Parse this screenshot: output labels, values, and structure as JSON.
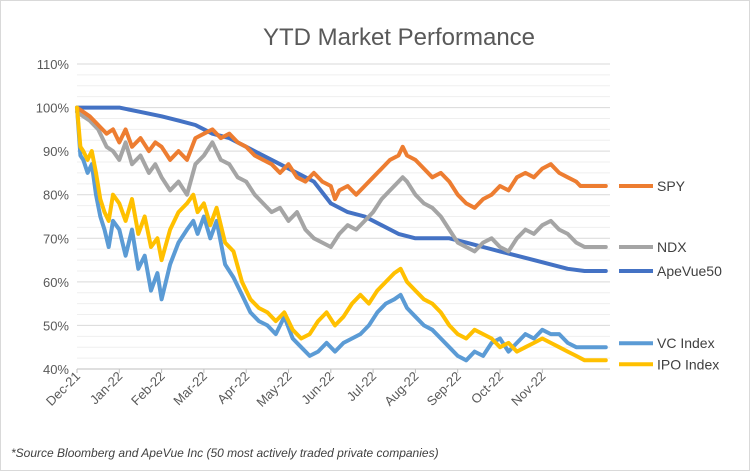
{
  "chart_data": {
    "type": "line",
    "title": "YTD Market Performance",
    "xlabel": "",
    "ylabel": "",
    "ylim": [
      40,
      110
    ],
    "y_ticks": [
      "40%",
      "50%",
      "60%",
      "70%",
      "80%",
      "90%",
      "100%",
      "110%"
    ],
    "y_tick_values": [
      40,
      50,
      60,
      70,
      80,
      90,
      100,
      110
    ],
    "x_ticks": [
      "Dec-21",
      "Jan-22",
      "Feb-22",
      "Mar-22",
      "Apr-22",
      "May-22",
      "Jun-22",
      "Jul-22",
      "Aug-22",
      "Sep-22",
      "Oct-22",
      "Nov-22"
    ],
    "x_tick_values": [
      0,
      1,
      2,
      3,
      4,
      5,
      6,
      7,
      8,
      9,
      10,
      11
    ],
    "x_range": [
      0,
      12.6
    ],
    "grid": true,
    "legend": "right, beside line ends",
    "series": [
      {
        "name": "SPY",
        "color": "#ED7D31",
        "points": [
          [
            0,
            100
          ],
          [
            0.15,
            99
          ],
          [
            0.3,
            98
          ],
          [
            0.5,
            96
          ],
          [
            0.7,
            94
          ],
          [
            0.85,
            95
          ],
          [
            1.0,
            92
          ],
          [
            1.15,
            95
          ],
          [
            1.3,
            91
          ],
          [
            1.5,
            93
          ],
          [
            1.7,
            90
          ],
          [
            1.85,
            92
          ],
          [
            2.0,
            91
          ],
          [
            2.2,
            88
          ],
          [
            2.4,
            90
          ],
          [
            2.6,
            88
          ],
          [
            2.8,
            93
          ],
          [
            3.0,
            94
          ],
          [
            3.2,
            95
          ],
          [
            3.4,
            93
          ],
          [
            3.6,
            94
          ],
          [
            3.8,
            92
          ],
          [
            4.0,
            91
          ],
          [
            4.2,
            89
          ],
          [
            4.4,
            88
          ],
          [
            4.6,
            87
          ],
          [
            4.8,
            85
          ],
          [
            5.0,
            87
          ],
          [
            5.2,
            84
          ],
          [
            5.4,
            83
          ],
          [
            5.6,
            85
          ],
          [
            5.8,
            83
          ],
          [
            6.0,
            82
          ],
          [
            6.1,
            79
          ],
          [
            6.2,
            81
          ],
          [
            6.4,
            82
          ],
          [
            6.6,
            80
          ],
          [
            6.8,
            82
          ],
          [
            7.0,
            84
          ],
          [
            7.2,
            86
          ],
          [
            7.4,
            88
          ],
          [
            7.6,
            89
          ],
          [
            7.7,
            91
          ],
          [
            7.8,
            89
          ],
          [
            8.0,
            88
          ],
          [
            8.2,
            86
          ],
          [
            8.4,
            84
          ],
          [
            8.6,
            85
          ],
          [
            8.8,
            83
          ],
          [
            9.0,
            80
          ],
          [
            9.2,
            78
          ],
          [
            9.4,
            77
          ],
          [
            9.6,
            79
          ],
          [
            9.8,
            80
          ],
          [
            10.0,
            82
          ],
          [
            10.2,
            81
          ],
          [
            10.4,
            84
          ],
          [
            10.6,
            85
          ],
          [
            10.8,
            84
          ],
          [
            11.0,
            86
          ],
          [
            11.2,
            87
          ],
          [
            11.4,
            85
          ],
          [
            11.6,
            84
          ],
          [
            11.8,
            83
          ],
          [
            11.9,
            82
          ],
          [
            12.1,
            82
          ],
          [
            12.5,
            82
          ]
        ]
      },
      {
        "name": "NDX",
        "color": "#A5A5A5",
        "points": [
          [
            0,
            99
          ],
          [
            0.15,
            98
          ],
          [
            0.3,
            97
          ],
          [
            0.5,
            95
          ],
          [
            0.7,
            91
          ],
          [
            0.85,
            90
          ],
          [
            1.0,
            88
          ],
          [
            1.15,
            92
          ],
          [
            1.3,
            87
          ],
          [
            1.5,
            89
          ],
          [
            1.7,
            85
          ],
          [
            1.85,
            87
          ],
          [
            2.0,
            84
          ],
          [
            2.2,
            81
          ],
          [
            2.4,
            83
          ],
          [
            2.6,
            80
          ],
          [
            2.8,
            87
          ],
          [
            3.0,
            89
          ],
          [
            3.2,
            92
          ],
          [
            3.4,
            88
          ],
          [
            3.6,
            87
          ],
          [
            3.8,
            84
          ],
          [
            4.0,
            83
          ],
          [
            4.2,
            80
          ],
          [
            4.4,
            78
          ],
          [
            4.6,
            76
          ],
          [
            4.8,
            77
          ],
          [
            5.0,
            74
          ],
          [
            5.2,
            76
          ],
          [
            5.4,
            72
          ],
          [
            5.6,
            70
          ],
          [
            5.8,
            69
          ],
          [
            6.0,
            68
          ],
          [
            6.2,
            71
          ],
          [
            6.4,
            73
          ],
          [
            6.6,
            72
          ],
          [
            6.8,
            74
          ],
          [
            7.0,
            76
          ],
          [
            7.2,
            79
          ],
          [
            7.4,
            81
          ],
          [
            7.6,
            83
          ],
          [
            7.7,
            84
          ],
          [
            7.8,
            83
          ],
          [
            8.0,
            80
          ],
          [
            8.2,
            78
          ],
          [
            8.4,
            77
          ],
          [
            8.6,
            75
          ],
          [
            8.8,
            72
          ],
          [
            9.0,
            69
          ],
          [
            9.2,
            68
          ],
          [
            9.4,
            67
          ],
          [
            9.6,
            69
          ],
          [
            9.8,
            70
          ],
          [
            10.0,
            68
          ],
          [
            10.2,
            67
          ],
          [
            10.4,
            70
          ],
          [
            10.6,
            72
          ],
          [
            10.8,
            71
          ],
          [
            11.0,
            73
          ],
          [
            11.2,
            74
          ],
          [
            11.4,
            72
          ],
          [
            11.6,
            71
          ],
          [
            11.8,
            69
          ],
          [
            12.0,
            68
          ],
          [
            12.5,
            68
          ]
        ]
      },
      {
        "name": "ApeVue50",
        "color": "#4472C4",
        "points": [
          [
            0,
            100
          ],
          [
            0.5,
            100
          ],
          [
            1.0,
            100
          ],
          [
            1.5,
            99
          ],
          [
            2.0,
            98
          ],
          [
            2.4,
            97
          ],
          [
            2.8,
            96
          ],
          [
            3.2,
            94
          ],
          [
            3.6,
            93
          ],
          [
            4.0,
            91
          ],
          [
            4.4,
            89
          ],
          [
            4.8,
            87
          ],
          [
            5.2,
            85
          ],
          [
            5.6,
            83
          ],
          [
            6.0,
            78
          ],
          [
            6.4,
            76
          ],
          [
            6.8,
            75
          ],
          [
            7.2,
            73
          ],
          [
            7.6,
            71
          ],
          [
            8.0,
            70
          ],
          [
            8.4,
            70
          ],
          [
            8.8,
            70
          ],
          [
            9.2,
            69
          ],
          [
            9.6,
            68
          ],
          [
            10.0,
            67
          ],
          [
            10.4,
            66
          ],
          [
            10.8,
            65
          ],
          [
            11.2,
            64
          ],
          [
            11.6,
            63
          ],
          [
            12.0,
            62.5
          ],
          [
            12.5,
            62.5
          ]
        ]
      },
      {
        "name": "VC Index",
        "color": "#5B9BD5",
        "points": [
          [
            0,
            100
          ],
          [
            0.08,
            89
          ],
          [
            0.15,
            88
          ],
          [
            0.25,
            85
          ],
          [
            0.35,
            87
          ],
          [
            0.45,
            80
          ],
          [
            0.55,
            75
          ],
          [
            0.65,
            72
          ],
          [
            0.75,
            68
          ],
          [
            0.85,
            74
          ],
          [
            1.0,
            72
          ],
          [
            1.15,
            66
          ],
          [
            1.3,
            72
          ],
          [
            1.45,
            63
          ],
          [
            1.6,
            66
          ],
          [
            1.75,
            58
          ],
          [
            1.9,
            62
          ],
          [
            2.0,
            56
          ],
          [
            2.2,
            64
          ],
          [
            2.4,
            69
          ],
          [
            2.6,
            72
          ],
          [
            2.75,
            74
          ],
          [
            2.85,
            71
          ],
          [
            3.0,
            75
          ],
          [
            3.15,
            70
          ],
          [
            3.3,
            74
          ],
          [
            3.5,
            64
          ],
          [
            3.7,
            61
          ],
          [
            3.9,
            57
          ],
          [
            4.1,
            53
          ],
          [
            4.3,
            51
          ],
          [
            4.5,
            50
          ],
          [
            4.7,
            48
          ],
          [
            4.9,
            52
          ],
          [
            5.1,
            47
          ],
          [
            5.3,
            45
          ],
          [
            5.5,
            43
          ],
          [
            5.7,
            44
          ],
          [
            5.9,
            46
          ],
          [
            6.1,
            44
          ],
          [
            6.3,
            46
          ],
          [
            6.5,
            47
          ],
          [
            6.7,
            48
          ],
          [
            6.9,
            50
          ],
          [
            7.1,
            53
          ],
          [
            7.3,
            55
          ],
          [
            7.5,
            56
          ],
          [
            7.65,
            57
          ],
          [
            7.8,
            54
          ],
          [
            8.0,
            52
          ],
          [
            8.2,
            50
          ],
          [
            8.4,
            49
          ],
          [
            8.6,
            47
          ],
          [
            8.8,
            45
          ],
          [
            9.0,
            43
          ],
          [
            9.2,
            42
          ],
          [
            9.4,
            44
          ],
          [
            9.6,
            43
          ],
          [
            9.8,
            46
          ],
          [
            10.0,
            47
          ],
          [
            10.2,
            44
          ],
          [
            10.4,
            46
          ],
          [
            10.6,
            48
          ],
          [
            10.8,
            47
          ],
          [
            11.0,
            49
          ],
          [
            11.2,
            48
          ],
          [
            11.4,
            48
          ],
          [
            11.6,
            46
          ],
          [
            11.8,
            45
          ],
          [
            12.0,
            45
          ],
          [
            12.5,
            45
          ]
        ]
      },
      {
        "name": "IPO Index",
        "color": "#FFC000",
        "points": [
          [
            0,
            100
          ],
          [
            0.08,
            91
          ],
          [
            0.15,
            90
          ],
          [
            0.25,
            88
          ],
          [
            0.35,
            90
          ],
          [
            0.45,
            85
          ],
          [
            0.55,
            79
          ],
          [
            0.65,
            76
          ],
          [
            0.75,
            74
          ],
          [
            0.85,
            80
          ],
          [
            1.0,
            78
          ],
          [
            1.15,
            74
          ],
          [
            1.3,
            79
          ],
          [
            1.45,
            71
          ],
          [
            1.6,
            75
          ],
          [
            1.75,
            68
          ],
          [
            1.9,
            70
          ],
          [
            2.0,
            65
          ],
          [
            2.2,
            72
          ],
          [
            2.4,
            76
          ],
          [
            2.6,
            78
          ],
          [
            2.75,
            80
          ],
          [
            2.85,
            76
          ],
          [
            3.0,
            78
          ],
          [
            3.15,
            73
          ],
          [
            3.3,
            77
          ],
          [
            3.5,
            69
          ],
          [
            3.7,
            67
          ],
          [
            3.9,
            60
          ],
          [
            4.1,
            56
          ],
          [
            4.3,
            54
          ],
          [
            4.5,
            53
          ],
          [
            4.7,
            51
          ],
          [
            4.9,
            53
          ],
          [
            5.1,
            49
          ],
          [
            5.3,
            47
          ],
          [
            5.5,
            48
          ],
          [
            5.7,
            51
          ],
          [
            5.9,
            53
          ],
          [
            6.1,
            50
          ],
          [
            6.3,
            52
          ],
          [
            6.5,
            55
          ],
          [
            6.7,
            57
          ],
          [
            6.9,
            55
          ],
          [
            7.1,
            58
          ],
          [
            7.3,
            60
          ],
          [
            7.5,
            62
          ],
          [
            7.65,
            63
          ],
          [
            7.8,
            60
          ],
          [
            8.0,
            58
          ],
          [
            8.2,
            56
          ],
          [
            8.4,
            55
          ],
          [
            8.6,
            53
          ],
          [
            8.8,
            50
          ],
          [
            9.0,
            48
          ],
          [
            9.2,
            47
          ],
          [
            9.4,
            49
          ],
          [
            9.6,
            48
          ],
          [
            9.8,
            47
          ],
          [
            10.0,
            45
          ],
          [
            10.2,
            46
          ],
          [
            10.4,
            44
          ],
          [
            10.6,
            45
          ],
          [
            10.8,
            46
          ],
          [
            11.0,
            47
          ],
          [
            11.2,
            46
          ],
          [
            11.4,
            45
          ],
          [
            11.6,
            44
          ],
          [
            11.8,
            43
          ],
          [
            12.0,
            42
          ],
          [
            12.5,
            42
          ]
        ]
      }
    ],
    "legend_order_y": [
      82,
      68,
      62.5,
      45,
      42
    ],
    "source_note": "*Source Bloomberg and ApeVue Inc (50 most actively traded private companies)"
  }
}
